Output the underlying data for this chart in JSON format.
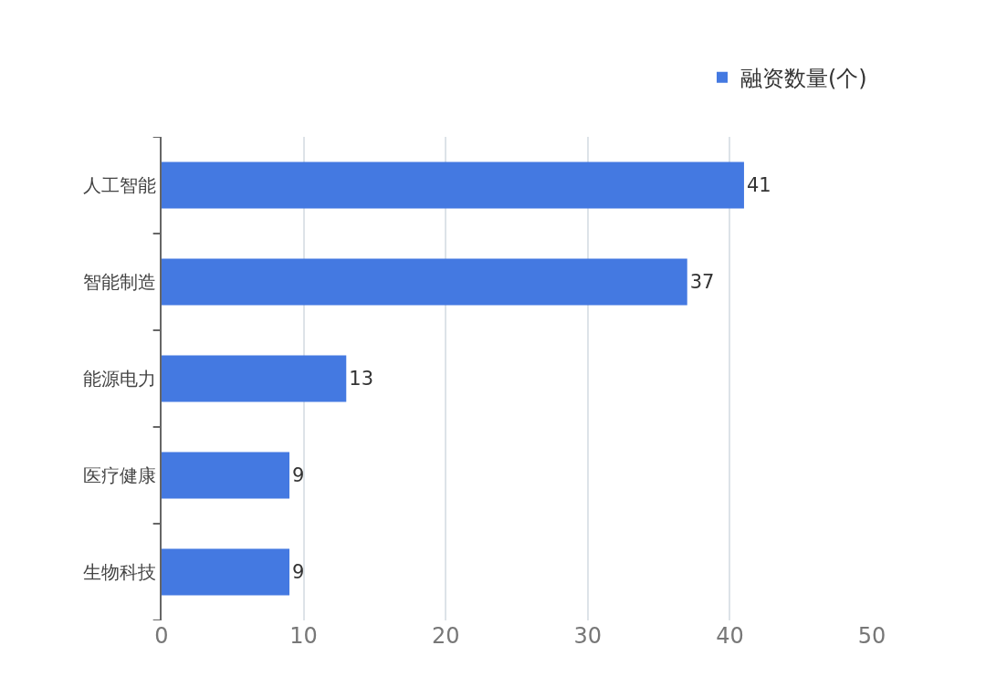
{
  "chart_data": {
    "type": "bar",
    "orientation": "horizontal",
    "categories": [
      "人工智能",
      "智能制造",
      "能源电力",
      "医疗健康",
      "生物科技"
    ],
    "series": [
      {
        "name": "融资数量(个)",
        "color": "#4479e1",
        "values": [
          41,
          37,
          13,
          9,
          9
        ]
      }
    ],
    "xlim": [
      0,
      50
    ],
    "xticks": [
      0,
      10,
      20,
      30,
      40,
      50
    ],
    "grid": "x",
    "legend": "top right",
    "data_labels": true
  }
}
